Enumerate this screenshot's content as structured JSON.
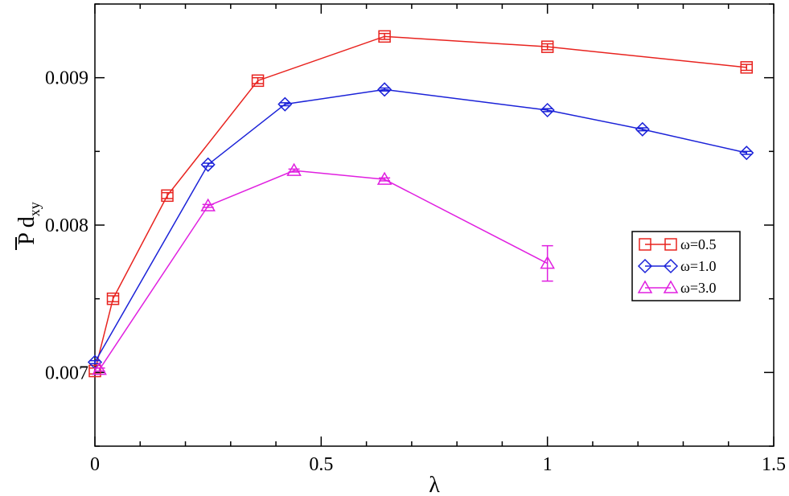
{
  "chart_data": {
    "type": "line",
    "title": "",
    "xlabel": "λ",
    "ylabel": "P d",
    "ylabel_subscript": "xy",
    "xlim": [
      0,
      1.5
    ],
    "ylim": [
      0.0065,
      0.0095
    ],
    "x_ticks": [
      0,
      0.5,
      1,
      1.5
    ],
    "x_tick_labels": [
      "0",
      "0.5",
      "1",
      "1.5"
    ],
    "y_ticks": [
      0.007,
      0.008,
      0.009
    ],
    "y_tick_labels": [
      "0.007",
      "0.008",
      "0.009"
    ],
    "grid": false,
    "legend_position": "right",
    "series": [
      {
        "name": "ω=0.5",
        "color": "#e8231f",
        "marker": "square",
        "x": [
          0,
          0.04,
          0.16,
          0.36,
          0.64,
          1.0,
          1.44
        ],
        "y": [
          0.00701,
          0.0075,
          0.0082,
          0.00898,
          0.00928,
          0.00921,
          0.00907
        ],
        "err": [
          2e-05,
          2e-05,
          2e-05,
          2e-05,
          2e-05,
          2e-05,
          2e-05
        ]
      },
      {
        "name": "ω=1.0",
        "color": "#1b22d8",
        "marker": "diamond",
        "x": [
          0,
          0.25,
          0.42,
          0.64,
          1.0,
          1.21,
          1.44
        ],
        "y": [
          0.00707,
          0.00841,
          0.00882,
          0.00892,
          0.00878,
          0.00865,
          0.00849
        ],
        "err": [
          1e-05,
          1e-05,
          1e-05,
          1e-05,
          1e-05,
          1e-05,
          1e-05
        ]
      },
      {
        "name": "ω=3.0",
        "color": "#e020e0",
        "marker": "triangle",
        "x": [
          0.01,
          0.25,
          0.44,
          0.64,
          1.0
        ],
        "y": [
          0.00702,
          0.00813,
          0.00837,
          0.00831,
          0.00774
        ],
        "err": [
          1e-05,
          1e-05,
          1e-05,
          1e-05,
          0.00012
        ]
      }
    ]
  }
}
